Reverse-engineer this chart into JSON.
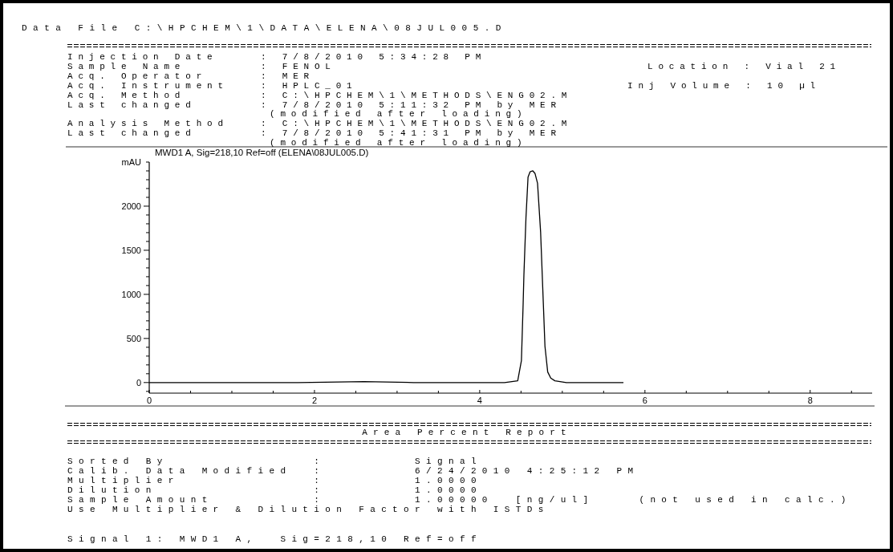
{
  "chart_data": {
    "type": "line",
    "title": "MWD1 A, Sig=218,10 Ref=off (ELENA\\08JUL005.D)",
    "ylabel": "mAU",
    "xlim": [
      0,
      8.75
    ],
    "ylim": [
      -120,
      2500
    ],
    "xticks": [
      0,
      {
        "value": 0.5,
        "label": null
      },
      {
        "value": 1,
        "label": null
      },
      {
        "value": 1.5,
        "label": null
      },
      2,
      {
        "value": 2.5,
        "label": null
      },
      {
        "value": 3,
        "label": null
      },
      {
        "value": 3.5,
        "label": null
      },
      4,
      {
        "value": 4.5,
        "label": null
      },
      {
        "value": 5,
        "label": null
      },
      {
        "value": 5.5,
        "label": null
      },
      6,
      {
        "value": 6.5,
        "label": null
      },
      {
        "value": 7,
        "label": null
      },
      {
        "value": 7.5,
        "label": null
      },
      8,
      {
        "value": 8.5,
        "label": null
      }
    ],
    "yticks": [
      {
        "value": -100,
        "label": null
      },
      0,
      {
        "value": 100,
        "label": null
      },
      {
        "value": 200,
        "label": null
      },
      {
        "value": 300,
        "label": null
      },
      {
        "value": 400,
        "label": null
      },
      500,
      {
        "value": 600,
        "label": null
      },
      {
        "value": 700,
        "label": null
      },
      {
        "value": 800,
        "label": null
      },
      {
        "value": 900,
        "label": null
      },
      1000,
      {
        "value": 1100,
        "label": null
      },
      {
        "value": 1200,
        "label": null
      },
      {
        "value": 1300,
        "label": null
      },
      {
        "value": 1400,
        "label": null
      },
      1500,
      {
        "value": 1600,
        "label": null
      },
      {
        "value": 1700,
        "label": null
      },
      {
        "value": 1800,
        "label": null
      },
      {
        "value": 1900,
        "label": null
      },
      2000,
      {
        "value": 2100,
        "label": null
      },
      {
        "value": 2200,
        "label": null
      },
      {
        "value": 2300,
        "label": null
      },
      {
        "value": 2400,
        "label": null
      },
      {
        "value": 2500,
        "label": null
      }
    ],
    "grid": false,
    "marker": "none",
    "line_style": "solid",
    "series": [
      {
        "color": "#000000",
        "x": [
          0,
          1,
          1.8,
          2.6,
          3.2,
          4.0,
          4.3,
          4.46,
          4.505,
          4.526,
          4.535,
          4.56,
          4.585,
          4.61,
          4.643,
          4.67,
          4.7,
          4.737,
          4.77,
          4.79,
          4.823,
          4.86,
          4.91,
          5.05,
          5.3,
          5.74
        ],
        "values": [
          0,
          0,
          0,
          10,
          0,
          0,
          0,
          20,
          250,
          900,
          1220,
          1870,
          2330,
          2390,
          2400,
          2370,
          2260,
          1710,
          900,
          410,
          120,
          50,
          20,
          0,
          0,
          0
        ]
      }
    ],
    "annotations": [
      "Data File C:\\HPCHEM\\1\\DATA\\ELENA\\08JUL005.D",
      "Injection Date    : 7/8/2010 5:34:28 PM",
      "Sample Name       : FENOL",
      "Acq. Operator     : MER",
      "Acq. Instrument   : HPLC_01",
      "Acq. Method       : C:\\HPCHEM\\1\\METHODS\\ENG02.M",
      "Last changed      : 7/8/2010 5:11:32 PM by MER",
      "(modified after loading)",
      "Analysis Method   : C:\\HPCHEM\\1\\METHODS\\ENG02.M",
      "Last changed      : 7/8/2010 5:41:31 PM by MER",
      "(modified after loading)",
      "Location : Vial 21",
      "Inj Volume : 10 µl",
      "Area Percent Report",
      "Sorted By             :        Signal",
      "Calib. Data Modified  :        6/24/2010 4:25:12 PM",
      "Multiplier            :        1.0000",
      "Dilution              :        1.0000",
      "Sample Amount         :        1.00000  [ng/ul]    (not used in calc.)",
      "Use Multiplier & Dilution Factor with ISTDs",
      "Signal 1: MWD1 A,  Sig=218,10 Ref=off"
    ]
  }
}
